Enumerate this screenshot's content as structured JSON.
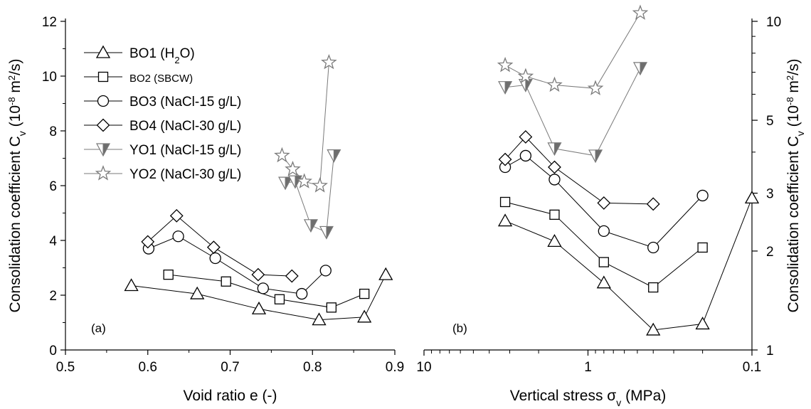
{
  "chart_data": [
    {
      "type": "line",
      "panel_label": "(a)",
      "xlabel": "Void ratio e (-)",
      "ylabel_main": "Consolidation coefficient C",
      "ylabel_sub": "v",
      "ylabel_paren_open": " (10",
      "ylabel_exp1": "-8",
      "ylabel_mid": " m",
      "ylabel_exp2": "2",
      "ylabel_end": "/s)",
      "xlim": [
        0.5,
        0.9
      ],
      "ylim": [
        0,
        12
      ],
      "x_ticks": [
        {
          "v": 0.5,
          "label": "0.5"
        },
        {
          "v": 0.6,
          "label": "0.6"
        },
        {
          "v": 0.7,
          "label": "0.7"
        },
        {
          "v": 0.8,
          "label": "0.8"
        },
        {
          "v": 0.9,
          "label": "0.9"
        }
      ],
      "y_ticks": [
        {
          "v": 0,
          "label": "0"
        },
        {
          "v": 2,
          "label": "2"
        },
        {
          "v": 4,
          "label": "4"
        },
        {
          "v": 6,
          "label": "6"
        },
        {
          "v": 8,
          "label": "8"
        },
        {
          "v": 10,
          "label": "10"
        },
        {
          "v": 12,
          "label": "12"
        }
      ],
      "series": [
        {
          "key": "BO1",
          "x": [
            0.58,
            0.66,
            0.735,
            0.808,
            0.863,
            0.889
          ],
          "y": [
            2.35,
            2.05,
            1.5,
            1.1,
            1.2,
            2.75
          ]
        },
        {
          "key": "BO2",
          "x": [
            0.625,
            0.695,
            0.76,
            0.823,
            0.863
          ],
          "y": [
            2.75,
            2.5,
            1.85,
            1.55,
            2.05
          ]
        },
        {
          "key": "BO3",
          "x": [
            0.601,
            0.637,
            0.682,
            0.74,
            0.787,
            0.816
          ],
          "y": [
            3.7,
            4.15,
            3.35,
            2.25,
            2.05,
            2.9
          ]
        },
        {
          "key": "BO4",
          "x": [
            0.6,
            0.635,
            0.68,
            0.734,
            0.775
          ],
          "y": [
            3.95,
            4.9,
            3.75,
            2.75,
            2.7
          ]
        },
        {
          "key": "YO1",
          "x": [
            0.767,
            0.779,
            0.798,
            0.817,
            0.826
          ],
          "y": [
            6.1,
            6.15,
            4.55,
            4.3,
            7.1
          ]
        },
        {
          "key": "YO2",
          "x": [
            0.763,
            0.776,
            0.79,
            0.809,
            0.82
          ],
          "y": [
            7.1,
            6.6,
            6.15,
            6.0,
            10.5
          ]
        }
      ]
    },
    {
      "type": "line",
      "panel_label": "(b)",
      "xlabel_main": "Vertical stress σ",
      "xlabel_sub": "v",
      "xlabel_end": " (MPa)",
      "ylabel_main": "Consolidation coefficient C",
      "ylabel_sub": "v",
      "ylabel_paren_open": " (10",
      "ylabel_exp1": "-8",
      "ylabel_mid": " m",
      "ylabel_exp2": "2",
      "ylabel_end": "/s)",
      "x_scale": "log-reversed",
      "y_scale": "log",
      "xlim": [
        10,
        0.1
      ],
      "ylim": [
        1,
        10
      ],
      "x_ticks": [
        {
          "v": 10,
          "label": "10"
        },
        {
          "v": 1,
          "label": "1"
        },
        {
          "v": 0.1,
          "label": "0.1"
        }
      ],
      "y_ticks": [
        {
          "v": 1,
          "label": "1"
        },
        {
          "v": 2,
          "label": "2"
        },
        {
          "v": 3,
          "label": "3"
        },
        {
          "v": 5,
          "label": "5"
        },
        {
          "v": 10,
          "label": "10"
        }
      ],
      "series": [
        {
          "key": "BO1",
          "x": [
            3.2,
            1.6,
            0.8,
            0.4,
            0.2,
            0.1
          ],
          "y": [
            2.47,
            2.14,
            1.6,
            1.15,
            1.2,
            2.9
          ]
        },
        {
          "key": "BO2",
          "x": [
            3.2,
            1.6,
            0.8,
            0.4,
            0.2
          ],
          "y": [
            2.82,
            2.58,
            1.85,
            1.55,
            2.05
          ]
        },
        {
          "key": "BO3",
          "x": [
            3.2,
            2.4,
            1.6,
            0.8,
            0.4,
            0.2
          ],
          "y": [
            3.6,
            3.9,
            3.3,
            2.3,
            2.05,
            2.95
          ]
        },
        {
          "key": "BO4",
          "x": [
            3.2,
            2.4,
            1.6,
            0.8,
            0.4
          ],
          "y": [
            3.8,
            4.45,
            3.6,
            2.8,
            2.78
          ]
        },
        {
          "key": "YO1",
          "x": [
            3.2,
            2.4,
            1.6,
            0.9,
            0.48
          ],
          "y": [
            6.3,
            6.4,
            4.1,
            3.9,
            7.2
          ]
        },
        {
          "key": "YO2",
          "x": [
            3.2,
            2.4,
            1.6,
            0.9,
            0.48
          ],
          "y": [
            7.35,
            6.8,
            6.4,
            6.25,
            10.6
          ]
        }
      ]
    }
  ],
  "legend": {
    "placement": "top-left",
    "items": [
      {
        "key": "BO1",
        "marker": "triangle-up",
        "label": "BO1 (H",
        "sub": "2",
        "label_end": "O)",
        "label_font": 19
      },
      {
        "key": "BO2",
        "marker": "square",
        "label": "BO2 (SBCW)",
        "sub": "",
        "label_end": "",
        "label_font": 15
      },
      {
        "key": "BO3",
        "marker": "circle",
        "label": "BO3 (NaCl-15 g/L)",
        "sub": "",
        "label_end": "",
        "label_font": 19
      },
      {
        "key": "BO4",
        "marker": "diamond",
        "label": "BO4 (NaCl-30 g/L)",
        "sub": "",
        "label_end": "",
        "label_font": 19
      },
      {
        "key": "YO1",
        "marker": "triangle-down-half",
        "label": "YO1 (NaCl-15 g/L)",
        "sub": "",
        "label_end": "",
        "label_font": 19
      },
      {
        "key": "YO2",
        "marker": "star",
        "label": "YO2 (NaCl-30 g/L)",
        "sub": "",
        "label_end": "",
        "label_font": 19
      }
    ]
  },
  "colors": {
    "axis": "#000000",
    "line_bo": "#000000",
    "line_yo": "#7a7a7a",
    "fill_yo": "#6d6d6d"
  }
}
